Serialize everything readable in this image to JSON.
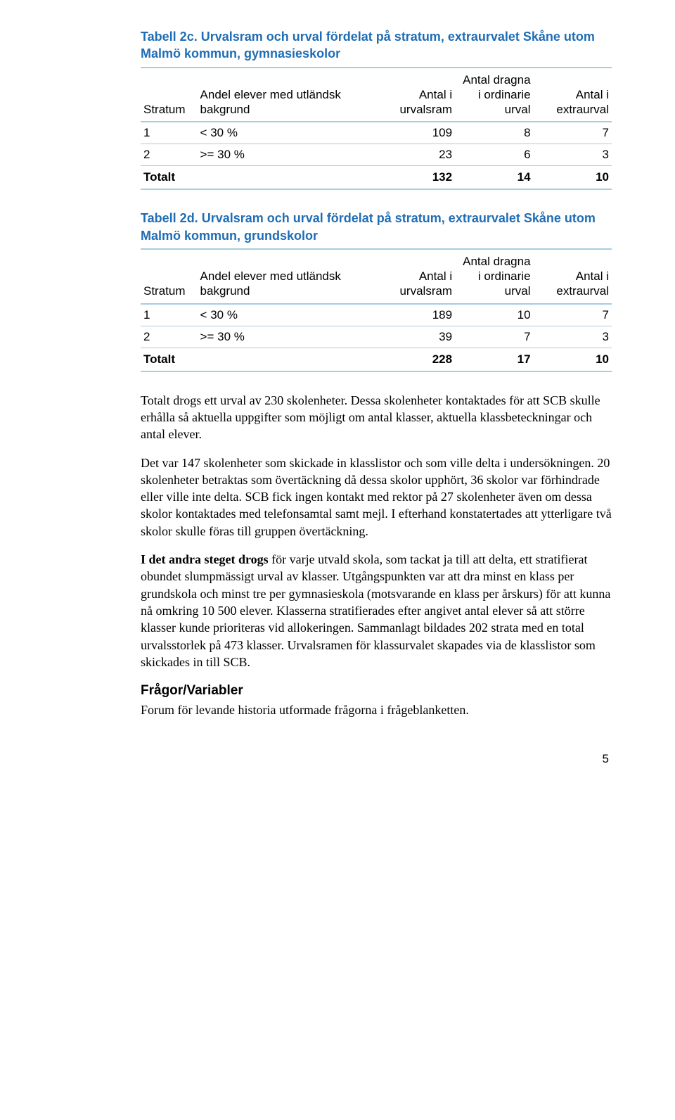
{
  "table2c": {
    "title_prefix": "Tabell 2c.",
    "title_rest": " Urvalsram och urval fördelat på stratum, extraurvalet Skåne utom Malmö kommun, gymnasieskolor",
    "headers": [
      "Stratum",
      "Andel elever med utländsk bakgrund",
      "Antal i urvalsram",
      "Antal dragna i ordinarie urval",
      "Antal i extraurval"
    ],
    "rows": [
      {
        "stratum": "1",
        "andel": "< 30 %",
        "urvalsram": "109",
        "dragna": "8",
        "extra": "7"
      },
      {
        "stratum": "2",
        "andel": ">= 30 %",
        "urvalsram": "23",
        "dragna": "6",
        "extra": "3"
      }
    ],
    "total_label": "Totalt",
    "totals": {
      "urvalsram": "132",
      "dragna": "14",
      "extra": "10"
    }
  },
  "table2d": {
    "title_prefix": "Tabell 2d.",
    "title_rest": " Urvalsram och urval fördelat på stratum, extraurvalet Skåne utom Malmö kommun, grundskolor",
    "headers": [
      "Stratum",
      "Andel elever med utländsk bakgrund",
      "Antal i urvalsram",
      "Antal dragna i ordinarie urval",
      "Antal i extraurval"
    ],
    "rows": [
      {
        "stratum": "1",
        "andel": "< 30 %",
        "urvalsram": "189",
        "dragna": "10",
        "extra": "7"
      },
      {
        "stratum": "2",
        "andel": ">= 30 %",
        "urvalsram": "39",
        "dragna": "7",
        "extra": "3"
      }
    ],
    "total_label": "Totalt",
    "totals": {
      "urvalsram": "228",
      "dragna": "17",
      "extra": "10"
    }
  },
  "para1": "Totalt drogs ett urval av 230 skolenheter. Dessa skolenheter kontaktades för att SCB skulle erhålla så aktuella uppgifter som möjligt om antal klasser, aktuella klassbeteckningar och antal elever.",
  "para2": "Det var 147 skolenheter som skickade in klasslistor och som ville delta i undersökningen. 20 skolenheter betraktas som övertäckning då dessa skolor upphört, 36 skolor var förhindrade eller ville inte delta. SCB fick ingen kontakt med rektor på 27 skolenheter även om dessa skolor kontaktades med telefonsamtal samt mejl. I efterhand konstatertades att ytterligare två skolor skulle föras till gruppen övertäckning.",
  "para3_bold": "I det andra steget drogs",
  "para3_rest": " för varje utvald skola, som tackat ja till att delta, ett stratifierat obundet slumpmässigt urval av klasser. Utgångspunkten var att dra minst en klass per grundskola och minst tre per gymnasieskola (motsvarande en klass per årskurs) för att kunna nå omkring 10 500 elever. Klasserna stratifierades efter angivet antal elever så att större klasser kunde prioriteras vid allokeringen. Sammanlagt bildades 202 strata med en total urvalsstorlek på 473 klasser. Urvalsramen för klassurvalet skapades via de klasslistor som skickades in till SCB.",
  "section_heading": "Frågor/Variabler",
  "para4": "Forum för levande historia utformade frågorna i frågeblanketten.",
  "page_number": "5"
}
